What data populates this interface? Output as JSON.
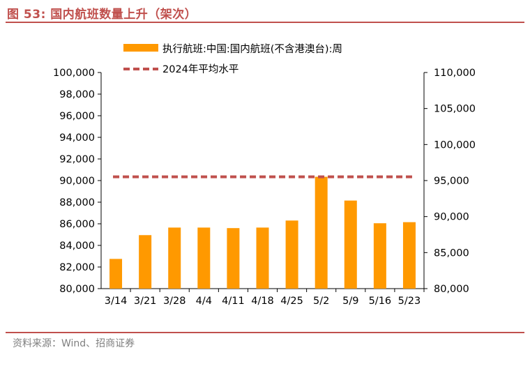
{
  "header": {
    "title": "图 53:  国内航班数量上升（架次）"
  },
  "footer": {
    "source": "资料来源：Wind、招商证券"
  },
  "colors": {
    "bar": "#ff9900",
    "ref_line": "#c0504d",
    "accent": "#c0504d"
  },
  "chart_data": {
    "type": "bar",
    "title": "国内航班数量上升（架次）",
    "categories": [
      "3/14",
      "3/21",
      "3/28",
      "4/4",
      "4/11",
      "4/18",
      "4/25",
      "5/2",
      "5/9",
      "5/16",
      "5/23"
    ],
    "series": [
      {
        "name": "执行航班:中国:国内航班(不含港澳台):周",
        "axis": "left",
        "values": [
          82750,
          84950,
          85650,
          85650,
          85600,
          85650,
          86300,
          90350,
          88150,
          86050,
          86150
        ]
      }
    ],
    "reference_lines": [
      {
        "name": "2024年平均水平",
        "axis": "left",
        "value": 90350,
        "style": "dashed"
      }
    ],
    "y_left": {
      "range": [
        80000,
        100000
      ],
      "ticks": [
        "80,000",
        "82,000",
        "84,000",
        "86,000",
        "88,000",
        "90,000",
        "92,000",
        "94,000",
        "96,000",
        "98,000",
        "100,000"
      ]
    },
    "y_right": {
      "range": [
        80000,
        110000
      ],
      "ticks": [
        "80,000",
        "85,000",
        "90,000",
        "95,000",
        "100,000",
        "105,000",
        "110,000"
      ]
    },
    "legend": [
      "执行航班:中国:国内航班(不含港澳台):周",
      "2024年平均水平"
    ],
    "legend_position": "top"
  }
}
